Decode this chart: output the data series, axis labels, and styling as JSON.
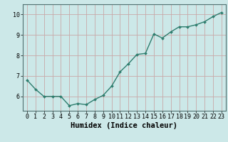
{
  "x": [
    0,
    1,
    2,
    3,
    4,
    5,
    6,
    7,
    8,
    9,
    10,
    11,
    12,
    13,
    14,
    15,
    16,
    17,
    18,
    19,
    20,
    21,
    22,
    23
  ],
  "y": [
    6.8,
    6.35,
    6.0,
    6.0,
    6.0,
    5.55,
    5.65,
    5.6,
    5.85,
    6.05,
    6.5,
    7.2,
    7.6,
    8.05,
    8.1,
    9.05,
    8.85,
    9.15,
    9.4,
    9.4,
    9.5,
    9.65,
    9.9,
    10.1
  ],
  "line_color": "#2e7d6e",
  "marker": "D",
  "marker_size": 2.0,
  "line_width": 1.0,
  "xlabel": "Humidex (Indice chaleur)",
  "xlim": [
    -0.5,
    23.5
  ],
  "ylim": [
    5.3,
    10.5
  ],
  "yticks": [
    6,
    7,
    8,
    9,
    10
  ],
  "xticks": [
    0,
    1,
    2,
    3,
    4,
    5,
    6,
    7,
    8,
    9,
    10,
    11,
    12,
    13,
    14,
    15,
    16,
    17,
    18,
    19,
    20,
    21,
    22,
    23
  ],
  "bg_color": "#cce8e8",
  "grid_color": "#c8a8a8",
  "tick_label_fontsize": 6.0,
  "xlabel_fontsize": 7.5,
  "xlabel_fontweight": "bold",
  "spine_color": "#507070"
}
